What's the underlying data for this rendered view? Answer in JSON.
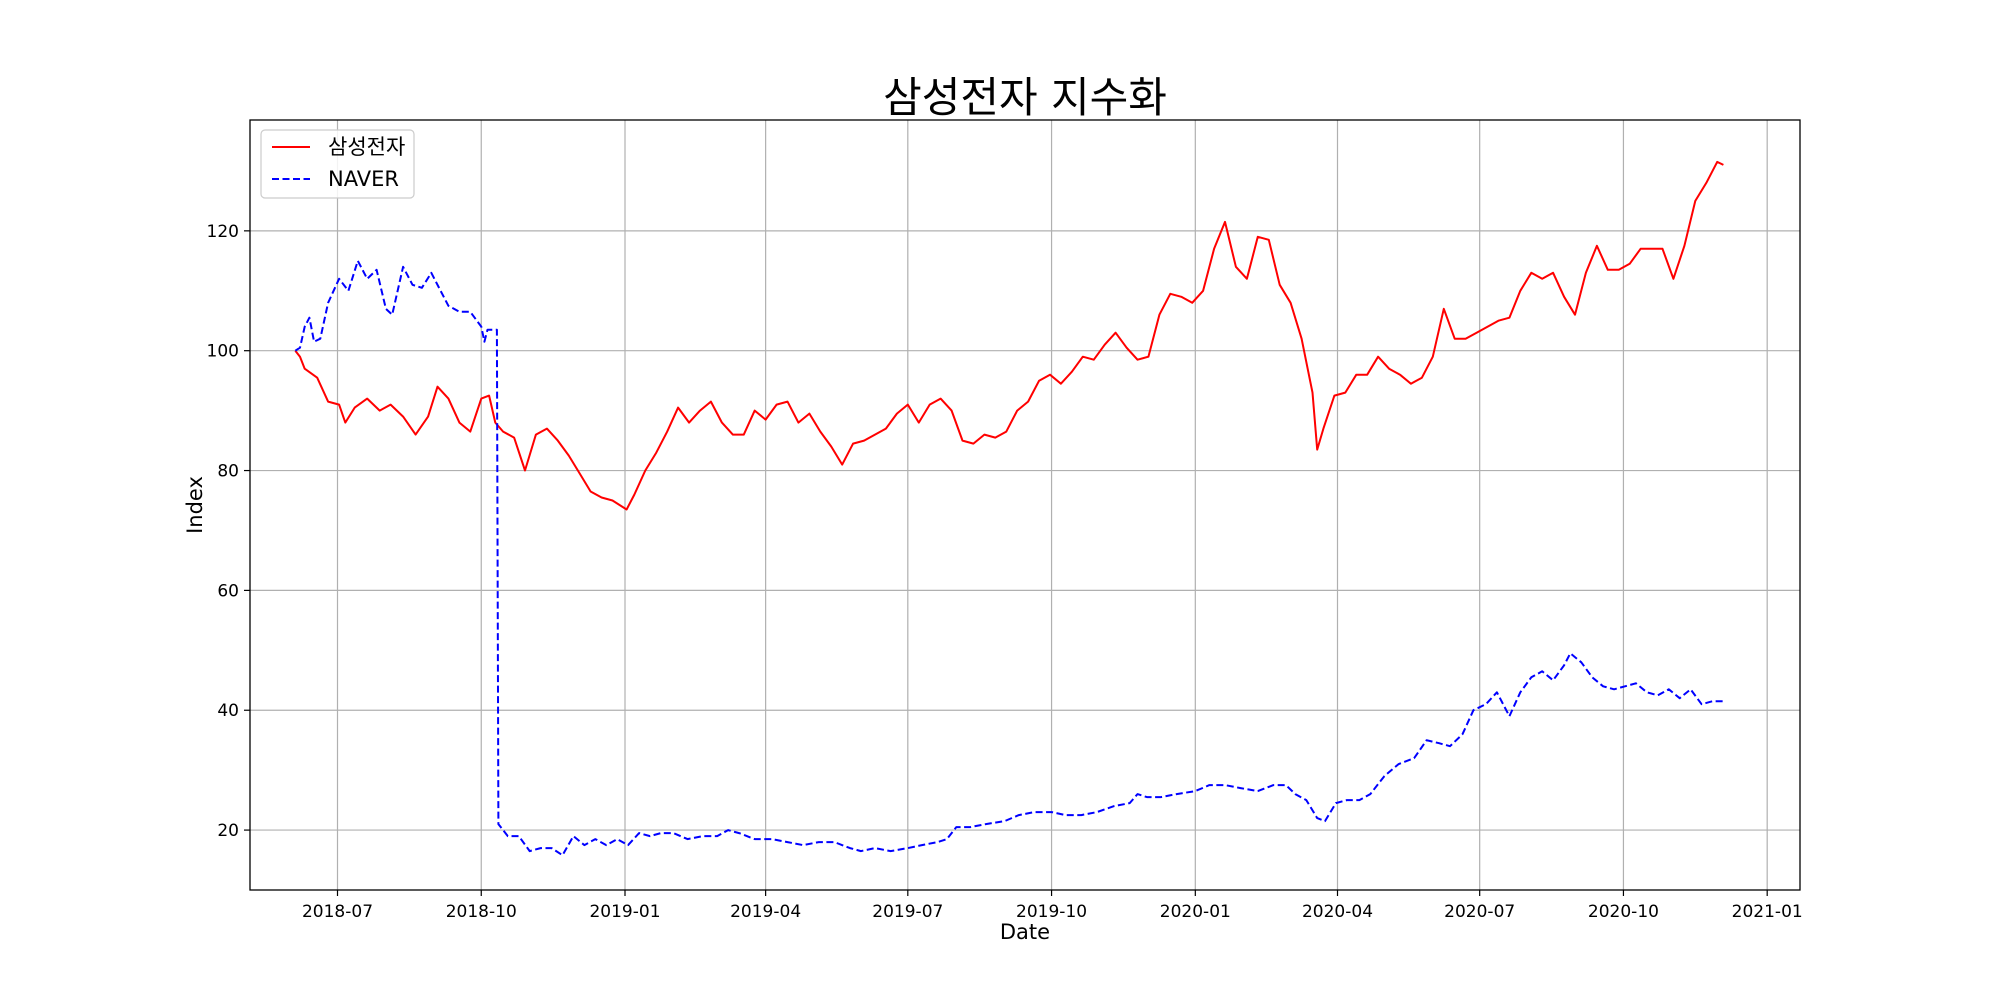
{
  "chart_data": {
    "type": "line",
    "title": "삼성전자 지수화",
    "xlabel": "Date",
    "ylabel": "Index",
    "xlim": [
      "2018-05-06",
      "2021-01-22"
    ],
    "ylim": [
      10,
      138.5
    ],
    "grid": true,
    "legend_position": "upper-left",
    "x_ticks": [
      "2018-07",
      "2018-10",
      "2019-01",
      "2019-04",
      "2019-07",
      "2019-10",
      "2020-01",
      "2020-04",
      "2020-07",
      "2020-10",
      "2021-01"
    ],
    "y_ticks": [
      20,
      40,
      60,
      80,
      100,
      120
    ],
    "series": [
      {
        "name": "삼성전자",
        "color": "#ff0000",
        "style": "solid",
        "points": [
          [
            "2018-06-04",
            100
          ],
          [
            "2018-06-07",
            99
          ],
          [
            "2018-06-10",
            97
          ],
          [
            "2018-06-18",
            95.5
          ],
          [
            "2018-06-25",
            91.5
          ],
          [
            "2018-07-02",
            91
          ],
          [
            "2018-07-06",
            88
          ],
          [
            "2018-07-12",
            90.5
          ],
          [
            "2018-07-20",
            92
          ],
          [
            "2018-07-28",
            90
          ],
          [
            "2018-08-04",
            91
          ],
          [
            "2018-08-12",
            89
          ],
          [
            "2018-08-20",
            86
          ],
          [
            "2018-08-28",
            89
          ],
          [
            "2018-09-03",
            94
          ],
          [
            "2018-09-10",
            92
          ],
          [
            "2018-09-17",
            88
          ],
          [
            "2018-09-24",
            86.5
          ],
          [
            "2018-10-01",
            92
          ],
          [
            "2018-10-06",
            92.5
          ],
          [
            "2018-10-10",
            88
          ],
          [
            "2018-10-15",
            86.5
          ],
          [
            "2018-10-22",
            85.5
          ],
          [
            "2018-10-29",
            80
          ],
          [
            "2018-11-05",
            86
          ],
          [
            "2018-11-12",
            87
          ],
          [
            "2018-11-19",
            85
          ],
          [
            "2018-11-26",
            82.5
          ],
          [
            "2018-12-03",
            79.5
          ],
          [
            "2018-12-10",
            76.5
          ],
          [
            "2018-12-17",
            75.5
          ],
          [
            "2018-12-24",
            75
          ],
          [
            "2019-01-02",
            73.5
          ],
          [
            "2019-01-07",
            76
          ],
          [
            "2019-01-14",
            80
          ],
          [
            "2019-01-21",
            83
          ],
          [
            "2019-01-28",
            86.5
          ],
          [
            "2019-02-04",
            90.5
          ],
          [
            "2019-02-11",
            88
          ],
          [
            "2019-02-18",
            90
          ],
          [
            "2019-02-25",
            91.5
          ],
          [
            "2019-03-04",
            88
          ],
          [
            "2019-03-11",
            86
          ],
          [
            "2019-03-18",
            86
          ],
          [
            "2019-03-25",
            90
          ],
          [
            "2019-04-01",
            88.5
          ],
          [
            "2019-04-08",
            91
          ],
          [
            "2019-04-15",
            91.5
          ],
          [
            "2019-04-22",
            88
          ],
          [
            "2019-04-29",
            89.5
          ],
          [
            "2019-05-06",
            86.5
          ],
          [
            "2019-05-13",
            84
          ],
          [
            "2019-05-20",
            81
          ],
          [
            "2019-05-27",
            84.5
          ],
          [
            "2019-06-03",
            85
          ],
          [
            "2019-06-10",
            86
          ],
          [
            "2019-06-17",
            87
          ],
          [
            "2019-06-24",
            89.5
          ],
          [
            "2019-07-01",
            91
          ],
          [
            "2019-07-08",
            88
          ],
          [
            "2019-07-15",
            91
          ],
          [
            "2019-07-22",
            92
          ],
          [
            "2019-07-29",
            90
          ],
          [
            "2019-08-05",
            85
          ],
          [
            "2019-08-12",
            84.5
          ],
          [
            "2019-08-19",
            86
          ],
          [
            "2019-08-26",
            85.5
          ],
          [
            "2019-09-02",
            86.5
          ],
          [
            "2019-09-09",
            90
          ],
          [
            "2019-09-16",
            91.5
          ],
          [
            "2019-09-23",
            95
          ],
          [
            "2019-09-30",
            96
          ],
          [
            "2019-10-07",
            94.5
          ],
          [
            "2019-10-14",
            96.5
          ],
          [
            "2019-10-21",
            99
          ],
          [
            "2019-10-28",
            98.5
          ],
          [
            "2019-11-04",
            101
          ],
          [
            "2019-11-11",
            103
          ],
          [
            "2019-11-18",
            100.5
          ],
          [
            "2019-11-25",
            98.5
          ],
          [
            "2019-12-02",
            99
          ],
          [
            "2019-12-09",
            106
          ],
          [
            "2019-12-16",
            109.5
          ],
          [
            "2019-12-23",
            109
          ],
          [
            "2019-12-30",
            108
          ],
          [
            "2020-01-06",
            110
          ],
          [
            "2020-01-13",
            117
          ],
          [
            "2020-01-20",
            121.5
          ],
          [
            "2020-01-27",
            114
          ],
          [
            "2020-02-03",
            112
          ],
          [
            "2020-02-10",
            119
          ],
          [
            "2020-02-17",
            118.5
          ],
          [
            "2020-02-24",
            111
          ],
          [
            "2020-03-02",
            108
          ],
          [
            "2020-03-09",
            102
          ],
          [
            "2020-03-16",
            93
          ],
          [
            "2020-03-19",
            83.5
          ],
          [
            "2020-03-23",
            87
          ],
          [
            "2020-03-30",
            92.5
          ],
          [
            "2020-04-06",
            93
          ],
          [
            "2020-04-13",
            96
          ],
          [
            "2020-04-20",
            96
          ],
          [
            "2020-04-27",
            99
          ],
          [
            "2020-05-04",
            97
          ],
          [
            "2020-05-11",
            96
          ],
          [
            "2020-05-18",
            94.5
          ],
          [
            "2020-05-25",
            95.5
          ],
          [
            "2020-06-01",
            99
          ],
          [
            "2020-06-08",
            107
          ],
          [
            "2020-06-15",
            102
          ],
          [
            "2020-06-22",
            102
          ],
          [
            "2020-06-29",
            103
          ],
          [
            "2020-07-06",
            104
          ],
          [
            "2020-07-13",
            105
          ],
          [
            "2020-07-20",
            105.5
          ],
          [
            "2020-07-27",
            110
          ],
          [
            "2020-08-03",
            113
          ],
          [
            "2020-08-10",
            112
          ],
          [
            "2020-08-17",
            113
          ],
          [
            "2020-08-24",
            109
          ],
          [
            "2020-08-31",
            106
          ],
          [
            "2020-09-07",
            113
          ],
          [
            "2020-09-14",
            117.5
          ],
          [
            "2020-09-21",
            113.5
          ],
          [
            "2020-09-28",
            113.5
          ],
          [
            "2020-10-05",
            114.5
          ],
          [
            "2020-10-12",
            117
          ],
          [
            "2020-10-19",
            117
          ],
          [
            "2020-10-26",
            117
          ],
          [
            "2020-11-02",
            112
          ],
          [
            "2020-11-09",
            117.5
          ],
          [
            "2020-11-16",
            125
          ],
          [
            "2020-11-23",
            128
          ],
          [
            "2020-11-30",
            131.5
          ],
          [
            "2020-12-04",
            131
          ]
        ]
      },
      {
        "name": "NAVER",
        "color": "#0000ff",
        "style": "dashed",
        "points": [
          [
            "2018-06-04",
            100
          ],
          [
            "2018-06-07",
            100.5
          ],
          [
            "2018-06-10",
            104
          ],
          [
            "2018-06-13",
            105.5
          ],
          [
            "2018-06-16",
            101.5
          ],
          [
            "2018-06-20",
            102
          ],
          [
            "2018-06-25",
            108
          ],
          [
            "2018-07-02",
            112
          ],
          [
            "2018-07-08",
            110
          ],
          [
            "2018-07-14",
            115
          ],
          [
            "2018-07-20",
            112
          ],
          [
            "2018-07-26",
            113.5
          ],
          [
            "2018-08-01",
            107
          ],
          [
            "2018-08-05",
            106
          ],
          [
            "2018-08-12",
            114
          ],
          [
            "2018-08-18",
            111
          ],
          [
            "2018-08-24",
            110.5
          ],
          [
            "2018-08-30",
            113
          ],
          [
            "2018-09-05",
            110
          ],
          [
            "2018-09-10",
            107.5
          ],
          [
            "2018-09-17",
            106.5
          ],
          [
            "2018-09-24",
            106.5
          ],
          [
            "2018-10-01",
            104
          ],
          [
            "2018-10-03",
            101.5
          ],
          [
            "2018-10-05",
            103.5
          ],
          [
            "2018-10-11",
            103.5
          ],
          [
            "2018-10-12",
            21
          ],
          [
            "2018-10-18",
            19
          ],
          [
            "2018-10-25",
            19
          ],
          [
            "2018-11-01",
            16.5
          ],
          [
            "2018-11-08",
            17
          ],
          [
            "2018-11-15",
            17
          ],
          [
            "2018-11-22",
            15.8
          ],
          [
            "2018-11-29",
            19
          ],
          [
            "2018-12-06",
            17.5
          ],
          [
            "2018-12-13",
            18.5
          ],
          [
            "2018-12-20",
            17.5
          ],
          [
            "2018-12-27",
            18.5
          ],
          [
            "2019-01-03",
            17.5
          ],
          [
            "2019-01-10",
            19.5
          ],
          [
            "2019-01-17",
            19
          ],
          [
            "2019-01-24",
            19.5
          ],
          [
            "2019-02-01",
            19.5
          ],
          [
            "2019-02-10",
            18.5
          ],
          [
            "2019-02-20",
            19
          ],
          [
            "2019-03-01",
            19
          ],
          [
            "2019-03-08",
            20
          ],
          [
            "2019-03-15",
            19.5
          ],
          [
            "2019-03-25",
            18.5
          ],
          [
            "2019-04-05",
            18.5
          ],
          [
            "2019-04-15",
            18
          ],
          [
            "2019-04-25",
            17.5
          ],
          [
            "2019-05-05",
            18
          ],
          [
            "2019-05-15",
            18
          ],
          [
            "2019-05-25",
            17
          ],
          [
            "2019-06-01",
            16.5
          ],
          [
            "2019-06-10",
            17
          ],
          [
            "2019-06-20",
            16.5
          ],
          [
            "2019-07-01",
            17
          ],
          [
            "2019-07-10",
            17.5
          ],
          [
            "2019-07-20",
            18
          ],
          [
            "2019-07-26",
            18.5
          ],
          [
            "2019-08-01",
            20.5
          ],
          [
            "2019-08-10",
            20.5
          ],
          [
            "2019-08-20",
            21
          ],
          [
            "2019-09-01",
            21.5
          ],
          [
            "2019-09-10",
            22.5
          ],
          [
            "2019-09-20",
            23
          ],
          [
            "2019-10-01",
            23
          ],
          [
            "2019-10-10",
            22.5
          ],
          [
            "2019-10-20",
            22.5
          ],
          [
            "2019-10-30",
            23
          ],
          [
            "2019-11-10",
            24
          ],
          [
            "2019-11-20",
            24.5
          ],
          [
            "2019-11-25",
            26
          ],
          [
            "2019-12-01",
            25.5
          ],
          [
            "2019-12-10",
            25.5
          ],
          [
            "2019-12-20",
            26
          ],
          [
            "2020-01-01",
            26.5
          ],
          [
            "2020-01-10",
            27.5
          ],
          [
            "2020-01-20",
            27.5
          ],
          [
            "2020-01-30",
            27
          ],
          [
            "2020-02-10",
            26.5
          ],
          [
            "2020-02-20",
            27.5
          ],
          [
            "2020-02-28",
            27.5
          ],
          [
            "2020-03-05",
            26
          ],
          [
            "2020-03-12",
            25
          ],
          [
            "2020-03-19",
            22
          ],
          [
            "2020-03-24",
            21.5
          ],
          [
            "2020-03-31",
            24.5
          ],
          [
            "2020-04-07",
            25
          ],
          [
            "2020-04-15",
            25
          ],
          [
            "2020-04-22",
            26
          ],
          [
            "2020-05-01",
            29
          ],
          [
            "2020-05-10",
            31
          ],
          [
            "2020-05-20",
            32
          ],
          [
            "2020-05-28",
            35
          ],
          [
            "2020-06-05",
            34.5
          ],
          [
            "2020-06-12",
            34
          ],
          [
            "2020-06-20",
            36
          ],
          [
            "2020-06-27",
            40
          ],
          [
            "2020-07-05",
            41
          ],
          [
            "2020-07-12",
            43
          ],
          [
            "2020-07-20",
            39
          ],
          [
            "2020-07-27",
            43
          ],
          [
            "2020-08-03",
            45.5
          ],
          [
            "2020-08-10",
            46.5
          ],
          [
            "2020-08-17",
            45
          ],
          [
            "2020-08-24",
            47.5
          ],
          [
            "2020-08-28",
            49.5
          ],
          [
            "2020-09-04",
            48
          ],
          [
            "2020-09-11",
            45.5
          ],
          [
            "2020-09-18",
            44
          ],
          [
            "2020-09-25",
            43.5
          ],
          [
            "2020-10-02",
            44
          ],
          [
            "2020-10-09",
            44.5
          ],
          [
            "2020-10-16",
            43
          ],
          [
            "2020-10-23",
            42.5
          ],
          [
            "2020-10-30",
            43.5
          ],
          [
            "2020-11-06",
            42
          ],
          [
            "2020-11-13",
            43.5
          ],
          [
            "2020-11-20",
            41
          ],
          [
            "2020-11-27",
            41.5
          ],
          [
            "2020-12-04",
            41.5
          ]
        ]
      }
    ]
  }
}
